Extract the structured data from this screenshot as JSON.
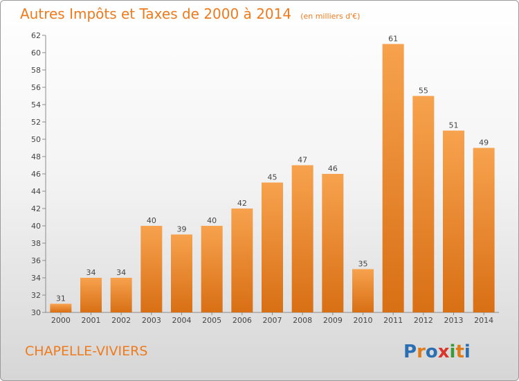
{
  "header": {
    "title": "Autres Impôts et Taxes de 2000 à 2014",
    "subtitle": "(en milliers d'€)"
  },
  "footer": {
    "commune": "CHAPELLE-VIVIERS",
    "logo_text": "Proxiti"
  },
  "colors": {
    "accent": "#ee7a1c",
    "bar_light": "#f7a24e",
    "bar_dark": "#d86f14",
    "logo_letters": [
      "#2b6fb3",
      "#e07b1a",
      "#2b6fb3",
      "#d9352a",
      "#3a9a3a",
      "#e07b1a",
      "#2b6fb3"
    ]
  },
  "chart_data": {
    "type": "bar",
    "title": "Autres Impôts et Taxes de 2000 à 2014",
    "subtitle": "(en milliers d'€)",
    "xlabel": "",
    "ylabel": "",
    "categories": [
      "2000",
      "2001",
      "2002",
      "2003",
      "2004",
      "2005",
      "2006",
      "2007",
      "2008",
      "2009",
      "2010",
      "2011",
      "2012",
      "2013",
      "2014"
    ],
    "values": [
      31,
      34,
      34,
      40,
      39,
      40,
      42,
      45,
      47,
      46,
      35,
      61,
      55,
      51,
      49
    ],
    "ylim": [
      30,
      62
    ],
    "yticks": [
      30,
      32,
      34,
      36,
      38,
      40,
      42,
      44,
      46,
      48,
      50,
      52,
      54,
      56,
      58,
      60,
      62
    ],
    "grid": false,
    "legend": "none"
  }
}
